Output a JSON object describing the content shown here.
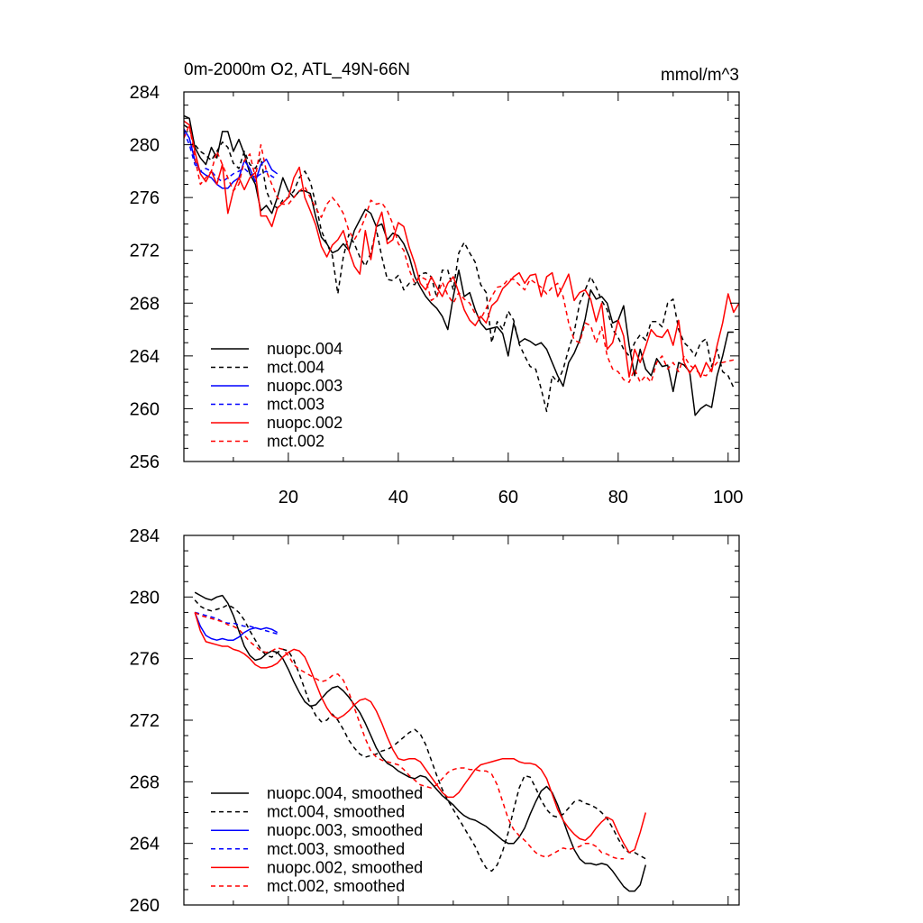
{
  "chart_data": [
    {
      "type": "line",
      "title": "0m-2000m O2, ATL_49N-66N",
      "units_label": "mmol/m^3",
      "xlabel": "",
      "ylabel": "",
      "xlim": [
        1,
        102
      ],
      "ylim": [
        256,
        284
      ],
      "y_ticks": [
        256,
        260,
        264,
        268,
        272,
        276,
        280,
        284
      ],
      "x_ticks": [
        20,
        40,
        60,
        80,
        100
      ],
      "y_tick_labels": [
        "256",
        "260",
        "264",
        "268",
        "272",
        "276",
        "280",
        "284"
      ],
      "x_tick_labels": [
        "20",
        "40",
        "60",
        "80",
        "100"
      ],
      "grid": false,
      "legend_position": "bottom-left",
      "series": [
        {
          "name": "nuopc.004",
          "color": "#000000",
          "dash": "solid",
          "x_start": 1,
          "values": [
            282.2,
            282.0,
            279.8,
            279.0,
            278.5,
            279.8,
            279.0,
            281.0,
            281.0,
            279.5,
            280.4,
            279.3,
            277.8,
            277.0,
            275.0,
            275.4,
            274.8,
            276.0,
            277.5,
            276.5,
            276.0,
            276.5,
            276.5,
            276.3,
            274.5,
            273.0,
            272.5,
            271.8,
            272.0,
            272.5,
            272.0,
            273.5,
            274.3,
            275.1,
            274.8,
            273.8,
            274.0,
            272.8,
            273.3,
            273.1,
            272.5,
            271.5,
            270.0,
            269.2,
            268.5,
            268.0,
            267.6,
            267.0,
            266.0,
            268.5,
            270.5,
            268.5,
            268.8,
            267.5,
            266.5,
            266.0,
            266.1,
            266.2,
            265.7,
            264.0,
            266.5,
            265.0,
            265.3,
            265.1,
            264.8,
            265.0,
            264.5,
            263.5,
            262.5,
            261.7,
            263.5,
            264.2,
            265.2,
            266.8,
            269.0,
            268.3,
            268.5,
            268.0,
            266.5,
            266.7,
            267.8,
            264.8,
            262.5,
            264.5,
            263.0,
            262.5,
            263.8,
            263.2,
            263.3,
            261.3,
            263.5,
            263.3,
            262.8,
            259.5,
            260.0,
            260.3,
            260.1,
            262.5,
            264.0,
            265.8,
            265.8
          ]
        },
        {
          "name": "mct.004",
          "color": "#000000",
          "dash": "dashed",
          "x_start": 1,
          "values": [
            281.5,
            281.2,
            280.0,
            279.5,
            279.2,
            278.8,
            279.5,
            280.2,
            279.8,
            278.6,
            278.2,
            279.5,
            278.5,
            278.2,
            279.0,
            276.5,
            275.5,
            275.2,
            275.8,
            276.0,
            276.5,
            277.5,
            278.0,
            277.2,
            275.5,
            273.5,
            272.5,
            271.6,
            268.7,
            271.5,
            273.2,
            272.5,
            271.5,
            270.8,
            271.8,
            273.6,
            271.5,
            269.8,
            269.7,
            270.1,
            269.0,
            269.5,
            269.4,
            270.2,
            270.3,
            270.0,
            268.4,
            270.5,
            270.5,
            269.0,
            271.8,
            272.6,
            271.8,
            271.1,
            269.4,
            268.8,
            265.0,
            266.6,
            266.0,
            267.4,
            266.7,
            264.9,
            264.0,
            263.2,
            263.0,
            261.5,
            259.8,
            262.5,
            262.0,
            263.0,
            264.5,
            265.8,
            268.0,
            269.0,
            270.0,
            269.2,
            268.2,
            267.5,
            266.0,
            265.4,
            264.5,
            264.0,
            265.0,
            265.6,
            265.2,
            266.6,
            266.6,
            266.2,
            268.0,
            268.3,
            266.0,
            265.0,
            264.6,
            264.0,
            265.0,
            265.3,
            263.2,
            264.5,
            262.8,
            262.5,
            261.6
          ]
        },
        {
          "name": "nuopc.003",
          "color": "#0000ff",
          "dash": "solid",
          "x_start": 1,
          "values": [
            281.2,
            280.5,
            278.8,
            278.0,
            277.7,
            277.5,
            277.0,
            276.7,
            276.7,
            277.2,
            277.5,
            278.8,
            278.2,
            277.2,
            278.5,
            278.9,
            278.1,
            277.8
          ]
        },
        {
          "name": "mct.003",
          "color": "#0000ff",
          "dash": "dashed",
          "x_start": 1,
          "values": [
            281.0,
            280.0,
            278.5,
            278.0,
            278.2,
            278.0,
            277.5,
            277.2,
            277.5,
            277.8,
            278.0,
            278.2,
            277.8,
            277.5,
            277.8,
            278.0,
            277.6,
            277.4
          ]
        },
        {
          "name": "nuopc.002",
          "color": "#ff0000",
          "dash": "solid",
          "x_start": 1,
          "values": [
            281.8,
            281.5,
            279.5,
            277.8,
            277.2,
            278.0,
            277.0,
            278.5,
            274.8,
            276.5,
            277.5,
            276.6,
            277.5,
            277.9,
            274.6,
            274.6,
            273.8,
            275.2,
            275.6,
            276.0,
            277.5,
            278.3,
            276.0,
            275.0,
            273.9,
            272.3,
            271.5,
            272.4,
            272.8,
            273.5,
            272.0,
            270.8,
            270.2,
            273.5,
            271.3,
            273.8,
            274.9,
            272.5,
            272.8,
            274.1,
            273.8,
            272.2,
            271.0,
            269.5,
            269.0,
            270.0,
            269.2,
            268.5,
            269.5,
            270.0,
            268.8,
            267.5,
            266.7,
            266.3,
            267.0,
            266.5,
            267.8,
            268.2,
            269.1,
            269.5,
            270.0,
            270.3,
            269.5,
            270.1,
            270.2,
            268.5,
            270.0,
            270.3,
            268.5,
            269.3,
            270.2,
            268.2,
            268.8,
            269.0,
            268.3,
            266.6,
            268.0,
            264.5,
            265.0,
            266.7,
            265.5,
            262.4,
            264.5,
            263.5,
            264.7,
            266.0,
            265.5,
            265.4,
            266.0,
            264.8,
            266.7,
            263.5,
            262.7,
            263.3,
            262.4,
            263.5,
            262.8,
            264.8,
            266.5,
            268.7,
            267.3,
            268.0
          ]
        },
        {
          "name": "mct.002",
          "color": "#ff0000",
          "dash": "dashed",
          "x_start": 1,
          "values": [
            280.5,
            281.5,
            279.0,
            277.0,
            277.5,
            278.0,
            279.5,
            278.5,
            277.5,
            276.5,
            277.0,
            278.8,
            279.3,
            277.5,
            280.0,
            278.0,
            277.0,
            276.0,
            275.5,
            275.5,
            276.0,
            276.5,
            276.8,
            276.0,
            275.2,
            274.5,
            275.5,
            276.0,
            275.5,
            274.8,
            273.5,
            272.8,
            273.5,
            274.5,
            275.8,
            275.5,
            275.6,
            275.0,
            274.0,
            272.5,
            272.0,
            270.5,
            269.5,
            270.0,
            269.8,
            268.2,
            268.5,
            269.6,
            268.6,
            268.0,
            268.8,
            268.3,
            268.0,
            267.2,
            266.8,
            267.6,
            268.5,
            269.2,
            269.3,
            269.8,
            269.8,
            269.4,
            269.0,
            269.8,
            269.5,
            269.2,
            268.7,
            269.2,
            269.5,
            268.5,
            266.5,
            265.2,
            265.0,
            266.5,
            266.3,
            265.0,
            266.2,
            264.0,
            263.0,
            262.8,
            262.2,
            262.0,
            263.0,
            262.0,
            262.5,
            262.0,
            263.5,
            264.0,
            263.0,
            263.5,
            262.8,
            264.0,
            263.3,
            263.0,
            262.6,
            262.5,
            263.0,
            263.5,
            263.5,
            263.6,
            263.7
          ]
        }
      ]
    },
    {
      "type": "line",
      "title": "",
      "xlabel": "",
      "ylabel": "",
      "xlim": [
        1,
        102
      ],
      "ylim": [
        260,
        284
      ],
      "y_ticks": [
        260,
        264,
        268,
        272,
        276,
        280,
        284
      ],
      "x_ticks": [
        20,
        40,
        60,
        80,
        100
      ],
      "y_tick_labels": [
        "260",
        "264",
        "268",
        "272",
        "276",
        "280",
        "284"
      ],
      "grid": false,
      "legend_position": "bottom-left",
      "series": [
        {
          "name": "nuopc.004, smoothed",
          "color": "#000000",
          "dash": "solid",
          "x_start": 3,
          "values": [
            280.3,
            280.1,
            279.9,
            279.8,
            280.0,
            280.1,
            279.6,
            278.8,
            277.8,
            276.8,
            276.2,
            275.9,
            276.0,
            276.3,
            276.5,
            276.4,
            276.0,
            275.3,
            274.5,
            273.8,
            273.2,
            272.9,
            273.0,
            273.4,
            273.8,
            274.1,
            274.2,
            273.9,
            273.5,
            273.0,
            272.5,
            271.8,
            271.0,
            270.2,
            269.6,
            269.2,
            269.0,
            268.7,
            268.5,
            268.3,
            268.2,
            268.4,
            268.3,
            267.9,
            267.5,
            267.1,
            266.8,
            266.5,
            266.1,
            265.8,
            265.6,
            265.5,
            265.3,
            265.1,
            264.8,
            264.5,
            264.2,
            264.0,
            264.0,
            264.4,
            265.0,
            265.9,
            266.7,
            267.4,
            267.7,
            267.3,
            266.5,
            265.5,
            264.5,
            263.6,
            263.0,
            262.7,
            262.7,
            262.6,
            262.7,
            262.6,
            262.2,
            261.7,
            261.2,
            260.9,
            260.9,
            261.3,
            262.6
          ]
        },
        {
          "name": "mct.004, smoothed",
          "color": "#000000",
          "dash": "dashed",
          "x_start": 3,
          "values": [
            279.8,
            279.4,
            279.2,
            279.1,
            279.2,
            279.3,
            279.5,
            279.3,
            279.0,
            278.5,
            277.8,
            277.2,
            276.6,
            276.2,
            276.1,
            276.4,
            276.6,
            276.5,
            275.9,
            275.0,
            274.0,
            273.0,
            272.3,
            271.9,
            272.0,
            272.4,
            272.0,
            271.4,
            270.7,
            270.2,
            269.8,
            269.6,
            269.7,
            269.8,
            270.0,
            270.1,
            270.3,
            270.6,
            270.9,
            271.2,
            271.4,
            271.1,
            270.4,
            269.4,
            268.4,
            267.5,
            266.8,
            266.2,
            265.6,
            265.0,
            264.4,
            263.8,
            263.0,
            262.4,
            262.2,
            262.6,
            263.5,
            264.7,
            266.2,
            267.6,
            268.4,
            268.3,
            267.6,
            266.8,
            266.2,
            265.8,
            265.7,
            265.9,
            266.3,
            266.7,
            266.8,
            266.6,
            266.5,
            266.3,
            266.0,
            265.6,
            265.0,
            264.3,
            263.7,
            263.4,
            263.4,
            263.2,
            263.0
          ]
        },
        {
          "name": "nuopc.003, smoothed",
          "color": "#0000ff",
          "dash": "solid",
          "x_start": 3,
          "values": [
            279.0,
            278.1,
            277.5,
            277.3,
            277.2,
            277.3,
            277.2,
            277.2,
            277.4,
            277.7,
            277.9,
            278.0,
            277.9,
            278.0,
            277.9,
            277.7
          ]
        },
        {
          "name": "mct.003, smoothed",
          "color": "#0000ff",
          "dash": "dashed",
          "x_start": 3,
          "values": [
            279.0,
            278.9,
            278.8,
            278.7,
            278.6,
            278.4,
            278.3,
            278.3,
            278.2,
            278.1,
            278.1,
            278.0,
            277.9,
            277.8,
            277.7,
            277.6
          ]
        },
        {
          "name": "nuopc.002, smoothed",
          "color": "#ff0000",
          "dash": "solid",
          "x_start": 3,
          "values": [
            279.0,
            277.8,
            277.1,
            277.0,
            276.9,
            276.8,
            276.8,
            276.6,
            276.5,
            276.3,
            276.0,
            275.6,
            275.4,
            275.4,
            275.5,
            275.7,
            276.1,
            276.4,
            276.6,
            276.5,
            276.1,
            275.3,
            274.4,
            273.5,
            272.8,
            272.3,
            272.1,
            272.3,
            272.6,
            273.0,
            273.3,
            273.4,
            273.2,
            272.6,
            271.8,
            270.9,
            270.1,
            269.5,
            269.4,
            269.5,
            269.5,
            269.3,
            268.8,
            268.3,
            267.8,
            267.3,
            267.0,
            267.0,
            267.3,
            267.8,
            268.3,
            268.8,
            269.1,
            269.2,
            269.3,
            269.4,
            269.5,
            269.5,
            269.5,
            269.3,
            269.2,
            269.2,
            269.1,
            268.8,
            268.2,
            267.2,
            266.2,
            265.5,
            265.0,
            264.6,
            264.3,
            264.2,
            264.5,
            265.0,
            265.4,
            265.7,
            265.5,
            264.7,
            264.0,
            263.4,
            263.6,
            264.7,
            266.0
          ]
        },
        {
          "name": "mct.002, smoothed",
          "color": "#ff0000",
          "dash": "dashed",
          "x_start": 3,
          "values": [
            279.0,
            278.8,
            278.7,
            278.6,
            278.5,
            278.4,
            278.2,
            278.1,
            277.9,
            277.5,
            277.1,
            276.8,
            276.5,
            276.4,
            276.5,
            276.7,
            276.6,
            276.2,
            275.6,
            275.3,
            275.1,
            274.9,
            274.7,
            274.5,
            274.6,
            274.9,
            275.0,
            274.6,
            273.8,
            272.8,
            271.8,
            270.8,
            270.0,
            269.6,
            269.4,
            269.3,
            269.2,
            269.1,
            268.8,
            268.4,
            268.1,
            267.8,
            267.7,
            267.6,
            267.8,
            268.2,
            268.6,
            268.8,
            268.9,
            268.9,
            268.8,
            268.8,
            268.7,
            268.7,
            268.5,
            267.8,
            266.7,
            265.6,
            264.9,
            264.5,
            264.2,
            263.8,
            263.4,
            263.2,
            263.1,
            263.3,
            263.5,
            263.7,
            263.6,
            263.7,
            263.8,
            264.0,
            264.0,
            263.8,
            263.4,
            263.3,
            263.1,
            263.0,
            263.0
          ]
        }
      ]
    }
  ]
}
